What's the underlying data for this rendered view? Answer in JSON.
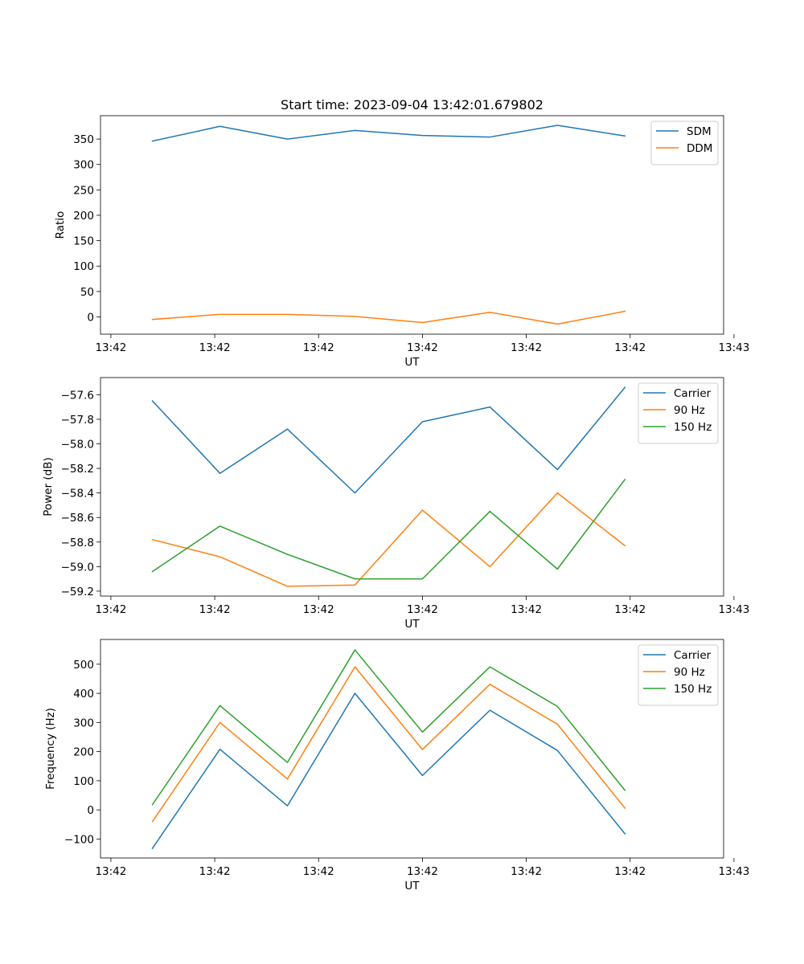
{
  "colors": {
    "blue": "#1f77b4",
    "orange": "#ff7f0e",
    "green": "#2ca02c"
  },
  "chart_data": [
    {
      "type": "line",
      "title": "Start time: 2023-09-04 13:42:01.679802",
      "xlabel": "UT",
      "ylabel": "Ratio",
      "xlim": [
        0,
        12
      ],
      "x": [
        1,
        2.3,
        3.6,
        4.9,
        6.2,
        7.5,
        8.8,
        10.1
      ],
      "xticks": [
        0.2,
        2.2,
        4.2,
        6.2,
        8.2,
        10.2,
        12.2
      ],
      "xtick_labels": [
        "13:42",
        "13:42",
        "13:42",
        "13:42",
        "13:42",
        "13:42",
        "13:43"
      ],
      "ylim": [
        -34,
        396
      ],
      "yticks": [
        0,
        50,
        100,
        150,
        200,
        250,
        300,
        350
      ],
      "ytick_labels": [
        "0",
        "50",
        "100",
        "150",
        "200",
        "250",
        "300",
        "350"
      ],
      "legend": "top-right",
      "series": [
        {
          "name": "SDM",
          "color": "#1f77b4",
          "values": [
            346,
            375,
            350,
            367,
            357,
            354,
            377,
            356
          ]
        },
        {
          "name": "DDM",
          "color": "#ff7f0e",
          "values": [
            -5,
            5,
            5,
            1,
            -11,
            9,
            -14,
            11
          ]
        }
      ]
    },
    {
      "type": "line",
      "title": "",
      "xlabel": "UT",
      "ylabel": "Power (dB)",
      "xlim": [
        0,
        12
      ],
      "x": [
        1,
        2.3,
        3.6,
        4.9,
        6.2,
        7.5,
        8.8,
        10.1
      ],
      "xticks": [
        0.2,
        2.2,
        4.2,
        6.2,
        8.2,
        10.2,
        12.2
      ],
      "xtick_labels": [
        "13:42",
        "13:42",
        "13:42",
        "13:42",
        "13:42",
        "13:42",
        "13:43"
      ],
      "ylim": [
        -59.24,
        -57.46
      ],
      "yticks": [
        -59.2,
        -59.0,
        -58.8,
        -58.6,
        -58.4,
        -58.2,
        -58.0,
        -57.8,
        -57.6
      ],
      "ytick_labels": [
        "−59.2",
        "−59.0",
        "−58.8",
        "−58.6",
        "−58.4",
        "−58.2",
        "−58.0",
        "−57.8",
        "−57.6"
      ],
      "legend": "top-right",
      "series": [
        {
          "name": "Carrier",
          "color": "#1f77b4",
          "values": [
            -57.65,
            -58.24,
            -57.88,
            -58.4,
            -57.82,
            -57.7,
            -58.21,
            -57.54
          ]
        },
        {
          "name": "90 Hz",
          "color": "#ff7f0e",
          "values": [
            -58.78,
            -58.92,
            -59.16,
            -59.15,
            -58.54,
            -59.0,
            -58.4,
            -58.83
          ]
        },
        {
          "name": "150 Hz",
          "color": "#2ca02c",
          "values": [
            -59.04,
            -58.67,
            -58.9,
            -59.1,
            -59.1,
            -58.55,
            -59.02,
            -58.29
          ]
        }
      ]
    },
    {
      "type": "line",
      "title": "",
      "xlabel": "UT",
      "ylabel": "Frequency (Hz)",
      "xlim": [
        0,
        12
      ],
      "x": [
        1,
        2.3,
        3.6,
        4.9,
        6.2,
        7.5,
        8.8,
        10.1
      ],
      "xticks": [
        0.2,
        2.2,
        4.2,
        6.2,
        8.2,
        10.2,
        12.2
      ],
      "xtick_labels": [
        "13:42",
        "13:42",
        "13:42",
        "13:42",
        "13:42",
        "13:42",
        "13:43"
      ],
      "ylim": [
        -165,
        585
      ],
      "yticks": [
        -100,
        0,
        100,
        200,
        300,
        400,
        500
      ],
      "ytick_labels": [
        "−100",
        "0",
        "100",
        "200",
        "300",
        "400",
        "500"
      ],
      "legend": "top-right",
      "series": [
        {
          "name": "Carrier",
          "color": "#1f77b4",
          "values": [
            -132,
            208,
            14,
            400,
            118,
            342,
            204,
            -82
          ]
        },
        {
          "name": "90 Hz",
          "color": "#ff7f0e",
          "values": [
            -40,
            300,
            106,
            491,
            207,
            431,
            294,
            6
          ]
        },
        {
          "name": "150 Hz",
          "color": "#2ca02c",
          "values": [
            18,
            358,
            163,
            549,
            267,
            491,
            355,
            67
          ]
        }
      ]
    }
  ]
}
